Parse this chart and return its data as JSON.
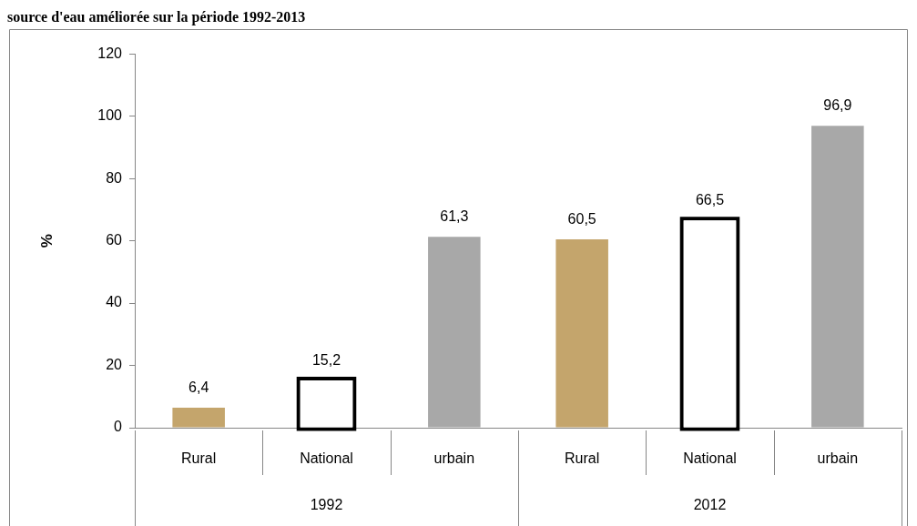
{
  "chart_data": {
    "type": "bar",
    "title": "source d'eau améliorée sur la période 1992-2013",
    "ylabel": "%",
    "categories": [
      "1992",
      "2012"
    ],
    "series": [
      {
        "name": "Rural",
        "color": "#c4a56c",
        "values": [
          6.4,
          60.5
        ],
        "value_labels": [
          "6,4",
          "60,5"
        ]
      },
      {
        "name": "National",
        "color": "#ffffff",
        "values": [
          15.2,
          66.5
        ],
        "value_labels": [
          "15,2",
          "66,5"
        ]
      },
      {
        "name": "urbain",
        "color": "#a8a8a8",
        "values": [
          61.3,
          96.9
        ],
        "value_labels": [
          "61,3",
          "96,9"
        ]
      }
    ],
    "ylim": [
      0,
      120
    ],
    "yticks": [
      0,
      20,
      40,
      60,
      80,
      100,
      120
    ],
    "grid": false,
    "legend": false
  }
}
